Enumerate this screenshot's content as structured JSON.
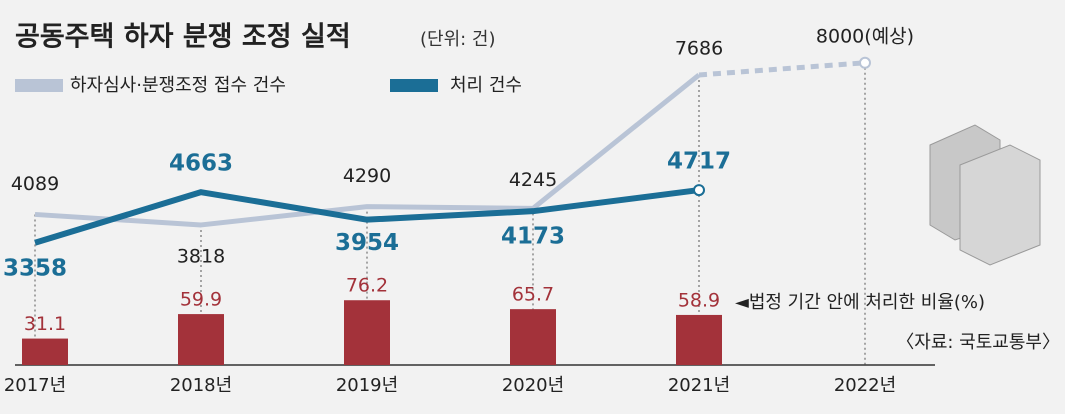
{
  "chart_data": {
    "type": "line",
    "title": "공동주택 하자 분쟁 조정 실적",
    "subtitle": "(단위: 건)",
    "categories": [
      "2017년",
      "2018년",
      "2019년",
      "2020년",
      "2021년",
      "2022년"
    ],
    "series": [
      {
        "name": "하자심사·분쟁조정 접수 건수",
        "color": "#b9c4d6",
        "values": [
          4089,
          3818,
          4290,
          4245,
          7686,
          8000
        ],
        "value_labels": [
          "4089",
          "3818",
          "4290",
          "4245",
          "7686",
          "8000(예상)"
        ]
      },
      {
        "name": "처리 건수",
        "color": "#1b6e96",
        "values": [
          3358,
          4663,
          3954,
          4173,
          4717,
          null
        ]
      },
      {
        "name": "◄법정 기간 안에 처리한 비율(%)",
        "type": "bar",
        "axis": "y2",
        "color": "#a3323a",
        "values": [
          31.1,
          59.9,
          76.2,
          65.7,
          58.9,
          null
        ]
      }
    ],
    "ylim": [
      0,
      9000
    ],
    "y2lim": [
      0,
      100
    ],
    "source": "〈자료: 국토교통부〉"
  }
}
